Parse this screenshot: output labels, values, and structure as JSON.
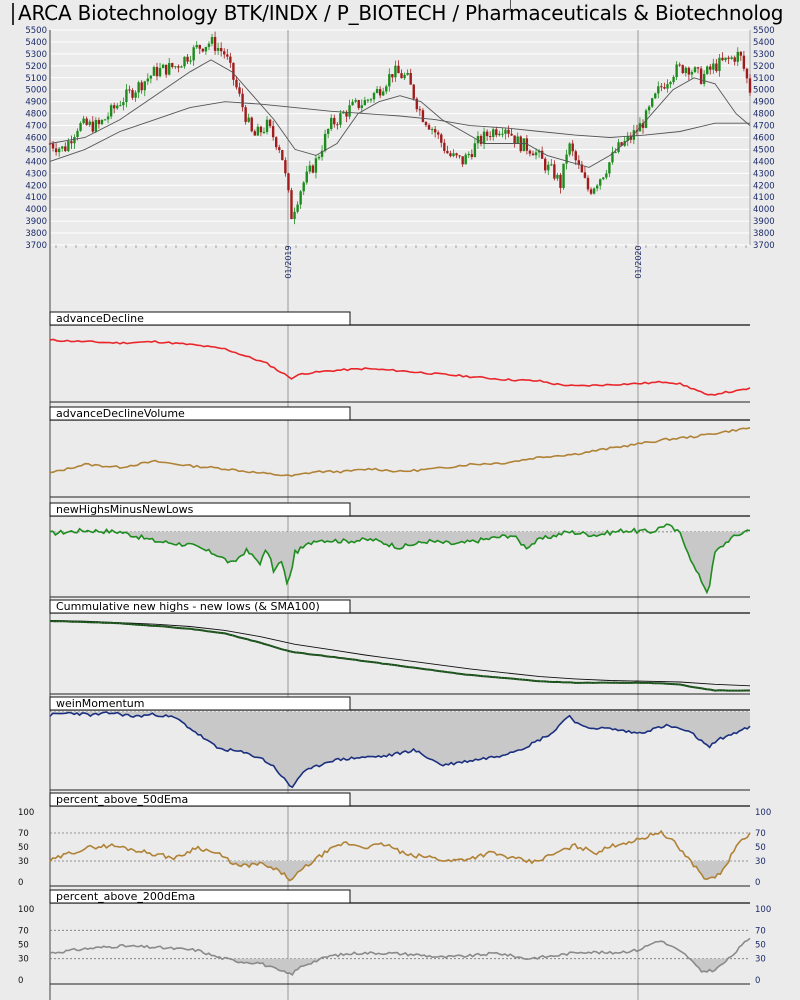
{
  "header": {
    "title": "ARCA Biotechnology BTK/INDX / P_BIOTECH / Pharmaceuticals & Biotechnolog"
  },
  "colors": {
    "up_candle": "#1d8c1d",
    "down_candle": "#a01c1c",
    "advance_decline": "#e8262a",
    "advance_decline_volume": "#b08236",
    "new_highs_minus_new_lows": "#1e8c1e",
    "cumulative": "#1a4a1a",
    "wein_momentum": "#1a2f7f",
    "percent_50": "#b08236",
    "percent_200": "#8a8a8a"
  },
  "chart_data": [
    {
      "type": "candlestick",
      "title": "ARCA Biotechnology BTK/INDX / P_BIOTECH / Pharmaceuticals & Biotechnolog",
      "ylim": [
        3700,
        5500
      ],
      "yticks": [
        3700,
        3800,
        3900,
        4000,
        4100,
        4200,
        4300,
        4400,
        4500,
        4600,
        4700,
        4800,
        4900,
        5000,
        5100,
        5200,
        5300,
        5400,
        5500
      ],
      "x_date_labels": [
        {
          "label": "01/2019",
          "pos": 0.34
        },
        {
          "label": "01/2020",
          "pos": 0.84
        }
      ],
      "close_path": [
        [
          0.0,
          4550
        ],
        [
          0.02,
          4500
        ],
        [
          0.04,
          4700
        ],
        [
          0.07,
          4700
        ],
        [
          0.1,
          4900
        ],
        [
          0.12,
          5000
        ],
        [
          0.15,
          5150
        ],
        [
          0.18,
          5200
        ],
        [
          0.21,
          5350
        ],
        [
          0.23,
          5400
        ],
        [
          0.25,
          5300
        ],
        [
          0.27,
          4950
        ],
        [
          0.29,
          4600
        ],
        [
          0.31,
          4700
        ],
        [
          0.33,
          4500
        ],
        [
          0.345,
          3950
        ],
        [
          0.36,
          4200
        ],
        [
          0.38,
          4400
        ],
        [
          0.4,
          4700
        ],
        [
          0.43,
          4850
        ],
        [
          0.45,
          4900
        ],
        [
          0.47,
          5000
        ],
        [
          0.49,
          5150
        ],
        [
          0.51,
          5100
        ],
        [
          0.53,
          4800
        ],
        [
          0.55,
          4650
        ],
        [
          0.57,
          4450
        ],
        [
          0.59,
          4400
        ],
        [
          0.61,
          4550
        ],
        [
          0.63,
          4650
        ],
        [
          0.65,
          4700
        ],
        [
          0.67,
          4550
        ],
        [
          0.69,
          4500
        ],
        [
          0.71,
          4350
        ],
        [
          0.72,
          4300
        ],
        [
          0.73,
          4200
        ],
        [
          0.74,
          4550
        ],
        [
          0.755,
          4350
        ],
        [
          0.77,
          4150
        ],
        [
          0.79,
          4300
        ],
        [
          0.81,
          4500
        ],
        [
          0.83,
          4600
        ],
        [
          0.85,
          4750
        ],
        [
          0.87,
          5000
        ],
        [
          0.89,
          5150
        ],
        [
          0.91,
          5200
        ],
        [
          0.93,
          5100
        ],
        [
          0.95,
          5200
        ],
        [
          0.97,
          5250
        ],
        [
          0.985,
          5300
        ],
        [
          1.0,
          5000
        ]
      ],
      "sma50_path": [
        [
          0.0,
          4550
        ],
        [
          0.05,
          4600
        ],
        [
          0.1,
          4750
        ],
        [
          0.15,
          4950
        ],
        [
          0.2,
          5150
        ],
        [
          0.23,
          5250
        ],
        [
          0.26,
          5150
        ],
        [
          0.29,
          4950
        ],
        [
          0.32,
          4750
        ],
        [
          0.35,
          4500
        ],
        [
          0.38,
          4450
        ],
        [
          0.41,
          4550
        ],
        [
          0.44,
          4800
        ],
        [
          0.47,
          4900
        ],
        [
          0.5,
          4950
        ],
        [
          0.53,
          4900
        ],
        [
          0.56,
          4750
        ],
        [
          0.59,
          4650
        ],
        [
          0.62,
          4550
        ],
        [
          0.65,
          4550
        ],
        [
          0.68,
          4550
        ],
        [
          0.71,
          4450
        ],
        [
          0.74,
          4400
        ],
        [
          0.77,
          4350
        ],
        [
          0.8,
          4450
        ],
        [
          0.83,
          4600
        ],
        [
          0.86,
          4800
        ],
        [
          0.89,
          5000
        ],
        [
          0.92,
          5100
        ],
        [
          0.95,
          5050
        ],
        [
          0.98,
          4800
        ],
        [
          1.0,
          4700
        ]
      ],
      "sma200_path": [
        [
          0.0,
          4400
        ],
        [
          0.05,
          4500
        ],
        [
          0.1,
          4650
        ],
        [
          0.15,
          4750
        ],
        [
          0.2,
          4850
        ],
        [
          0.25,
          4900
        ],
        [
          0.3,
          4880
        ],
        [
          0.35,
          4850
        ],
        [
          0.4,
          4820
        ],
        [
          0.45,
          4800
        ],
        [
          0.5,
          4780
        ],
        [
          0.55,
          4750
        ],
        [
          0.6,
          4700
        ],
        [
          0.65,
          4680
        ],
        [
          0.7,
          4650
        ],
        [
          0.75,
          4620
        ],
        [
          0.8,
          4600
        ],
        [
          0.85,
          4620
        ],
        [
          0.9,
          4650
        ],
        [
          0.95,
          4720
        ],
        [
          1.0,
          4720
        ]
      ]
    },
    {
      "type": "line",
      "title": "advanceDecline",
      "path": [
        [
          0.0,
          0.82
        ],
        [
          0.05,
          0.8
        ],
        [
          0.1,
          0.78
        ],
        [
          0.15,
          0.8
        ],
        [
          0.2,
          0.76
        ],
        [
          0.25,
          0.7
        ],
        [
          0.28,
          0.6
        ],
        [
          0.31,
          0.5
        ],
        [
          0.33,
          0.38
        ],
        [
          0.345,
          0.3
        ],
        [
          0.36,
          0.36
        ],
        [
          0.4,
          0.4
        ],
        [
          0.45,
          0.43
        ],
        [
          0.5,
          0.4
        ],
        [
          0.55,
          0.36
        ],
        [
          0.6,
          0.32
        ],
        [
          0.65,
          0.28
        ],
        [
          0.7,
          0.26
        ],
        [
          0.72,
          0.22
        ],
        [
          0.75,
          0.19
        ],
        [
          0.8,
          0.21
        ],
        [
          0.85,
          0.23
        ],
        [
          0.88,
          0.25
        ],
        [
          0.9,
          0.22
        ],
        [
          0.92,
          0.15
        ],
        [
          0.94,
          0.06
        ],
        [
          0.96,
          0.1
        ],
        [
          0.98,
          0.12
        ],
        [
          1.0,
          0.16
        ]
      ]
    },
    {
      "type": "line",
      "title": "advanceDeclineVolume",
      "path": [
        [
          0.0,
          0.3
        ],
        [
          0.05,
          0.42
        ],
        [
          0.1,
          0.38
        ],
        [
          0.15,
          0.46
        ],
        [
          0.2,
          0.4
        ],
        [
          0.25,
          0.36
        ],
        [
          0.3,
          0.3
        ],
        [
          0.345,
          0.26
        ],
        [
          0.38,
          0.32
        ],
        [
          0.42,
          0.32
        ],
        [
          0.46,
          0.36
        ],
        [
          0.5,
          0.32
        ],
        [
          0.55,
          0.36
        ],
        [
          0.6,
          0.42
        ],
        [
          0.65,
          0.44
        ],
        [
          0.7,
          0.52
        ],
        [
          0.75,
          0.56
        ],
        [
          0.8,
          0.64
        ],
        [
          0.84,
          0.7
        ],
        [
          0.88,
          0.76
        ],
        [
          0.92,
          0.8
        ],
        [
          0.96,
          0.86
        ],
        [
          1.0,
          0.92
        ]
      ]
    },
    {
      "type": "area",
      "title": "newHighsMinusNewLows",
      "path": [
        [
          0.0,
          0.8
        ],
        [
          0.05,
          0.84
        ],
        [
          0.1,
          0.82
        ],
        [
          0.15,
          0.7
        ],
        [
          0.2,
          0.65
        ],
        [
          0.24,
          0.52
        ],
        [
          0.26,
          0.4
        ],
        [
          0.28,
          0.58
        ],
        [
          0.3,
          0.42
        ],
        [
          0.31,
          0.6
        ],
        [
          0.32,
          0.3
        ],
        [
          0.33,
          0.45
        ],
        [
          0.34,
          0.12
        ],
        [
          0.35,
          0.55
        ],
        [
          0.38,
          0.72
        ],
        [
          0.42,
          0.7
        ],
        [
          0.46,
          0.72
        ],
        [
          0.5,
          0.62
        ],
        [
          0.54,
          0.7
        ],
        [
          0.58,
          0.66
        ],
        [
          0.62,
          0.72
        ],
        [
          0.66,
          0.78
        ],
        [
          0.68,
          0.62
        ],
        [
          0.7,
          0.72
        ],
        [
          0.74,
          0.82
        ],
        [
          0.78,
          0.78
        ],
        [
          0.82,
          0.84
        ],
        [
          0.86,
          0.82
        ],
        [
          0.88,
          0.92
        ],
        [
          0.9,
          0.8
        ],
        [
          0.91,
          0.6
        ],
        [
          0.92,
          0.36
        ],
        [
          0.93,
          0.2
        ],
        [
          0.94,
          0.02
        ],
        [
          0.95,
          0.55
        ],
        [
          0.97,
          0.72
        ],
        [
          1.0,
          0.86
        ]
      ],
      "baseline": 0.82
    },
    {
      "type": "line",
      "title": "Cummulative new highs - new lows (& SMA100)",
      "path": [
        [
          0.0,
          0.92
        ],
        [
          0.05,
          0.91
        ],
        [
          0.1,
          0.89
        ],
        [
          0.15,
          0.86
        ],
        [
          0.2,
          0.82
        ],
        [
          0.25,
          0.76
        ],
        [
          0.3,
          0.64
        ],
        [
          0.345,
          0.52
        ],
        [
          0.4,
          0.46
        ],
        [
          0.45,
          0.4
        ],
        [
          0.5,
          0.34
        ],
        [
          0.55,
          0.28
        ],
        [
          0.6,
          0.22
        ],
        [
          0.65,
          0.18
        ],
        [
          0.7,
          0.14
        ],
        [
          0.75,
          0.12
        ],
        [
          0.8,
          0.12
        ],
        [
          0.85,
          0.12
        ],
        [
          0.9,
          0.1
        ],
        [
          0.92,
          0.06
        ],
        [
          0.95,
          0.02
        ],
        [
          1.0,
          0.02
        ]
      ],
      "sma_path": [
        [
          0.0,
          0.93
        ],
        [
          0.05,
          0.92
        ],
        [
          0.1,
          0.9
        ],
        [
          0.15,
          0.88
        ],
        [
          0.2,
          0.85
        ],
        [
          0.25,
          0.8
        ],
        [
          0.3,
          0.72
        ],
        [
          0.35,
          0.62
        ],
        [
          0.4,
          0.55
        ],
        [
          0.45,
          0.48
        ],
        [
          0.5,
          0.42
        ],
        [
          0.55,
          0.36
        ],
        [
          0.6,
          0.3
        ],
        [
          0.65,
          0.25
        ],
        [
          0.7,
          0.2
        ],
        [
          0.75,
          0.17
        ],
        [
          0.8,
          0.15
        ],
        [
          0.85,
          0.14
        ],
        [
          0.9,
          0.13
        ],
        [
          0.95,
          0.1
        ],
        [
          1.0,
          0.08
        ]
      ]
    },
    {
      "type": "area",
      "title": "weinMomentum",
      "path": [
        [
          0.0,
          0.96
        ],
        [
          0.03,
          0.99
        ],
        [
          0.06,
          0.96
        ],
        [
          0.09,
          0.99
        ],
        [
          0.12,
          0.94
        ],
        [
          0.15,
          0.97
        ],
        [
          0.18,
          0.92
        ],
        [
          0.21,
          0.72
        ],
        [
          0.24,
          0.52
        ],
        [
          0.27,
          0.48
        ],
        [
          0.3,
          0.4
        ],
        [
          0.32,
          0.28
        ],
        [
          0.345,
          0.0
        ],
        [
          0.36,
          0.2
        ],
        [
          0.4,
          0.36
        ],
        [
          0.44,
          0.4
        ],
        [
          0.48,
          0.42
        ],
        [
          0.52,
          0.5
        ],
        [
          0.56,
          0.3
        ],
        [
          0.6,
          0.36
        ],
        [
          0.64,
          0.42
        ],
        [
          0.68,
          0.54
        ],
        [
          0.72,
          0.74
        ],
        [
          0.74,
          0.96
        ],
        [
          0.76,
          0.8
        ],
        [
          0.8,
          0.78
        ],
        [
          0.84,
          0.72
        ],
        [
          0.88,
          0.82
        ],
        [
          0.9,
          0.78
        ],
        [
          0.92,
          0.7
        ],
        [
          0.94,
          0.54
        ],
        [
          0.96,
          0.66
        ],
        [
          1.0,
          0.8
        ]
      ],
      "baseline": 1.0
    },
    {
      "type": "area",
      "title": "percent_above_50dEma",
      "yticks": [
        0,
        30,
        50,
        70,
        100
      ],
      "right_yticks": [
        0,
        30,
        50,
        70,
        100
      ],
      "ylim": [
        0,
        100
      ],
      "path": [
        [
          0.0,
          30
        ],
        [
          0.03,
          42
        ],
        [
          0.06,
          50
        ],
        [
          0.09,
          52
        ],
        [
          0.12,
          46
        ],
        [
          0.15,
          40
        ],
        [
          0.18,
          34
        ],
        [
          0.21,
          50
        ],
        [
          0.24,
          40
        ],
        [
          0.27,
          22
        ],
        [
          0.3,
          26
        ],
        [
          0.33,
          14
        ],
        [
          0.345,
          2
        ],
        [
          0.36,
          18
        ],
        [
          0.39,
          40
        ],
        [
          0.42,
          56
        ],
        [
          0.45,
          50
        ],
        [
          0.48,
          54
        ],
        [
          0.51,
          38
        ],
        [
          0.54,
          36
        ],
        [
          0.57,
          30
        ],
        [
          0.6,
          34
        ],
        [
          0.63,
          42
        ],
        [
          0.66,
          34
        ],
        [
          0.69,
          28
        ],
        [
          0.72,
          40
        ],
        [
          0.75,
          52
        ],
        [
          0.78,
          42
        ],
        [
          0.81,
          54
        ],
        [
          0.84,
          60
        ],
        [
          0.87,
          72
        ],
        [
          0.89,
          58
        ],
        [
          0.91,
          36
        ],
        [
          0.93,
          12
        ],
        [
          0.94,
          2
        ],
        [
          0.96,
          14
        ],
        [
          0.98,
          50
        ],
        [
          1.0,
          70
        ]
      ],
      "baseline": 30
    },
    {
      "type": "area",
      "title": "percent_above_200dEma",
      "yticks": [
        0,
        30,
        50,
        70,
        100
      ],
      "right_yticks": [
        0,
        30,
        50,
        70,
        100
      ],
      "ylim": [
        0,
        100
      ],
      "path": [
        [
          0.0,
          38
        ],
        [
          0.05,
          44
        ],
        [
          0.1,
          48
        ],
        [
          0.15,
          46
        ],
        [
          0.18,
          44
        ],
        [
          0.21,
          42
        ],
        [
          0.24,
          32
        ],
        [
          0.27,
          26
        ],
        [
          0.3,
          24
        ],
        [
          0.33,
          12
        ],
        [
          0.345,
          8
        ],
        [
          0.36,
          20
        ],
        [
          0.4,
          34
        ],
        [
          0.44,
          38
        ],
        [
          0.48,
          38
        ],
        [
          0.52,
          36
        ],
        [
          0.56,
          32
        ],
        [
          0.6,
          34
        ],
        [
          0.64,
          38
        ],
        [
          0.68,
          30
        ],
        [
          0.72,
          34
        ],
        [
          0.76,
          40
        ],
        [
          0.8,
          38
        ],
        [
          0.84,
          42
        ],
        [
          0.87,
          56
        ],
        [
          0.89,
          46
        ],
        [
          0.91,
          34
        ],
        [
          0.93,
          12
        ],
        [
          0.95,
          14
        ],
        [
          0.97,
          30
        ],
        [
          1.0,
          60
        ]
      ],
      "baseline": 30
    }
  ]
}
